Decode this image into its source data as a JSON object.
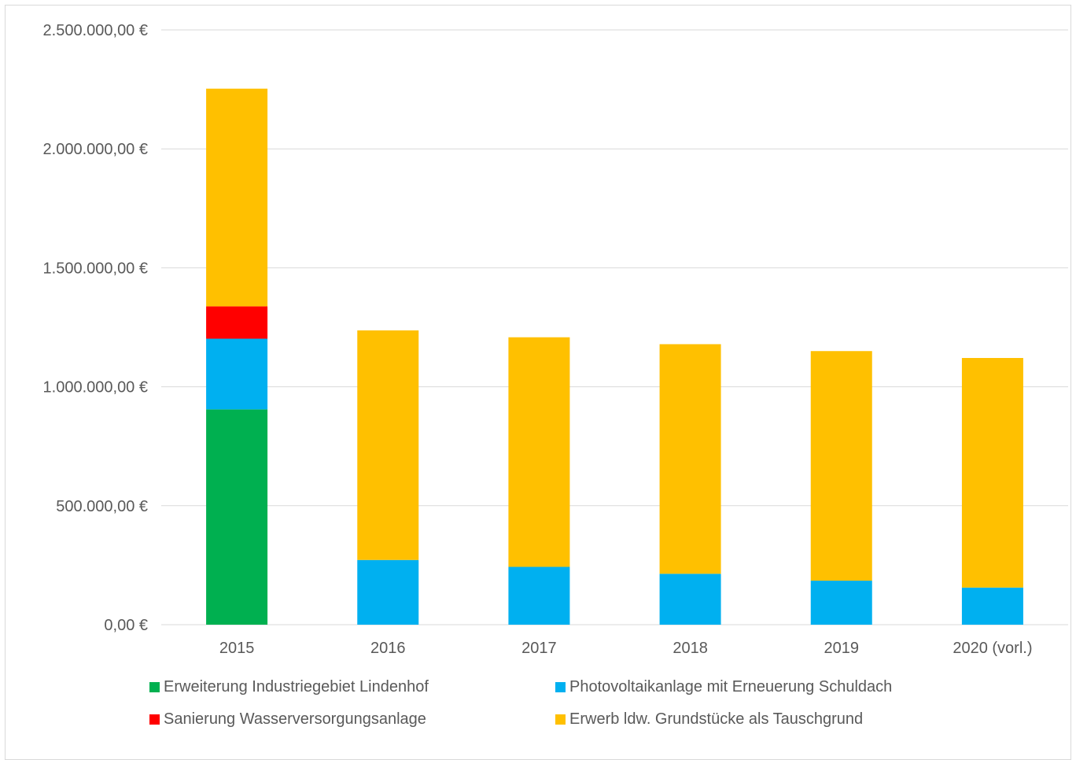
{
  "chart_data": {
    "type": "bar",
    "stacked": true,
    "categories": [
      "2015",
      "2016",
      "2017",
      "2018",
      "2019",
      "2020 (vorl.)"
    ],
    "ylim": [
      0,
      2500000
    ],
    "yticks": [
      0,
      500000,
      1000000,
      1500000,
      2000000,
      2500000
    ],
    "ytick_labels": [
      "0,00 €",
      "500.000,00 €",
      "1.000.000,00 €",
      "1.500.000,00 €",
      "2.000.000,00 €",
      "2.500.000,00 €"
    ],
    "grid": true,
    "legend_position": "bottom",
    "series": [
      {
        "name": "Erweiterung Industriegebiet Lindenhof",
        "color": "#00b050",
        "values": [
          905000,
          0,
          0,
          0,
          0,
          0
        ]
      },
      {
        "name": "Photovoltaikanlage mit Erneuerung Schuldach",
        "color": "#00b0f0",
        "values": [
          297000,
          272000,
          243000,
          214000,
          185000,
          156000
        ]
      },
      {
        "name": "Sanierung Wasserversorgungsanlage",
        "color": "#ff0000",
        "values": [
          136000,
          0,
          0,
          0,
          0,
          0
        ]
      },
      {
        "name": "Erwerb ldw. Grundstücke als Tauschgrund",
        "color": "#ffc000",
        "values": [
          915000,
          965000,
          965000,
          965000,
          965000,
          965000
        ]
      }
    ]
  }
}
